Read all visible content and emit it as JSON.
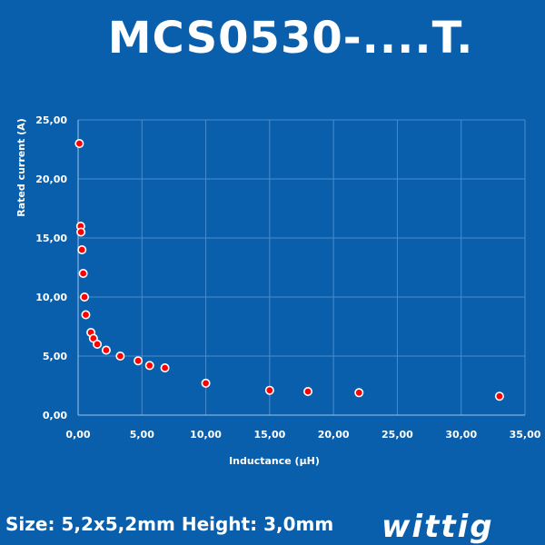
{
  "header": {
    "title": "MCS0530-....T."
  },
  "footer": {
    "size_text": "Size: 5,2x5,2mm Height: 3,0mm",
    "brand": "wittig"
  },
  "colors": {
    "background": "#0a5fac",
    "marker": "#ff0000",
    "marker_stroke": "#ffffff",
    "grid": "#4a8ccc"
  },
  "chart_data": {
    "type": "scatter",
    "xlabel": "Inductance (µH)",
    "ylabel": "Rated current (A)",
    "xlim": [
      0,
      35
    ],
    "ylim": [
      0,
      25
    ],
    "x_ticks": [
      "0,00",
      "5,00",
      "10,00",
      "15,00",
      "20,00",
      "25,00",
      "30,00",
      "35,00"
    ],
    "y_ticks": [
      "0,00",
      "5,00",
      "10,00",
      "15,00",
      "20,00",
      "25,00"
    ],
    "grid": true,
    "series": [
      {
        "x": [
          0.1,
          0.2,
          0.22,
          0.3,
          0.4,
          0.5,
          0.6,
          1.0,
          1.2,
          1.5,
          2.2,
          3.3,
          4.7,
          5.6,
          6.8,
          10,
          15,
          18,
          22,
          33
        ],
        "y": [
          23,
          16,
          15.5,
          14,
          12,
          10,
          8.5,
          7,
          6.5,
          6,
          5.5,
          5,
          4.6,
          4.2,
          4,
          2.7,
          2.1,
          2,
          1.9,
          1.6
        ]
      }
    ]
  }
}
